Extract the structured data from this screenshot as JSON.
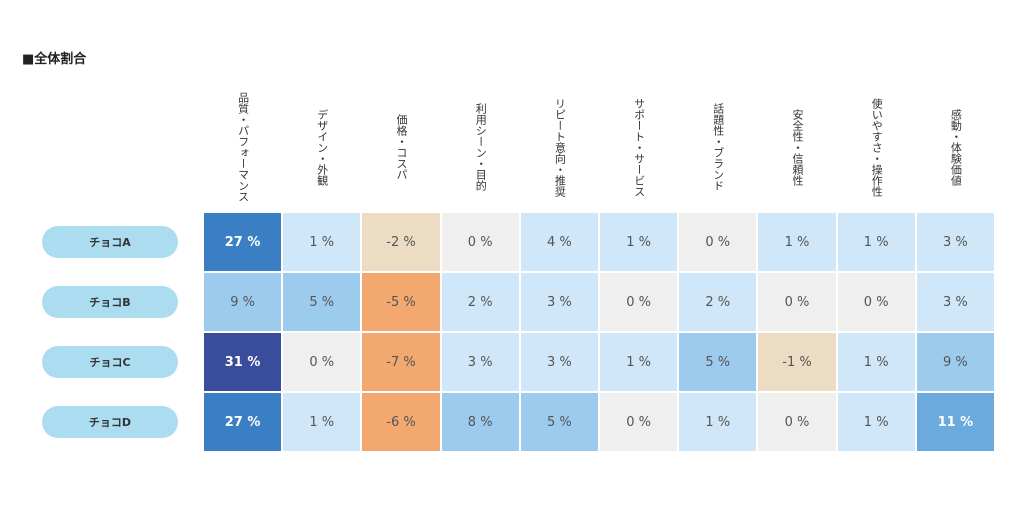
{
  "chart_data": {
    "type": "heatmap",
    "title": "■全体割合",
    "columns": [
      "品質・パフォーマンス",
      "デザイン・外観",
      "価格・コスパ",
      "利用シーン・目的",
      "リピート意向・推奨",
      "サポート・サービス",
      "話題性・ブランド",
      "安全性・信頼性",
      "使いやすさ・操作性",
      "感動・体験価値"
    ],
    "rows": [
      "チョコA",
      "チョコB",
      "チョコC",
      "チョコD"
    ],
    "values": [
      [
        27,
        1,
        -2,
        0,
        4,
        1,
        0,
        1,
        1,
        3
      ],
      [
        9,
        5,
        -5,
        2,
        3,
        0,
        2,
        0,
        0,
        3
      ],
      [
        31,
        0,
        -7,
        3,
        3,
        1,
        5,
        -1,
        1,
        9
      ],
      [
        27,
        1,
        -6,
        8,
        5,
        0,
        1,
        0,
        1,
        11
      ]
    ],
    "value_labels": [
      [
        "27 %",
        "1 %",
        "-2 %",
        "0 %",
        "4 %",
        "1 %",
        "0 %",
        "1 %",
        "1 %",
        "3 %"
      ],
      [
        "9 %",
        "5 %",
        "-5 %",
        "2 %",
        "3 %",
        "0 %",
        "2 %",
        "0 %",
        "0 %",
        "3 %"
      ],
      [
        "31 %",
        "0 %",
        "-7 %",
        "3 %",
        "3 %",
        "1 %",
        "5 %",
        "-1 %",
        "1 %",
        "9 %"
      ],
      [
        "27 %",
        "1 %",
        "-6 %",
        "8 %",
        "5 %",
        "0 %",
        "1 %",
        "0 %",
        "1 %",
        "11 %"
      ]
    ]
  }
}
